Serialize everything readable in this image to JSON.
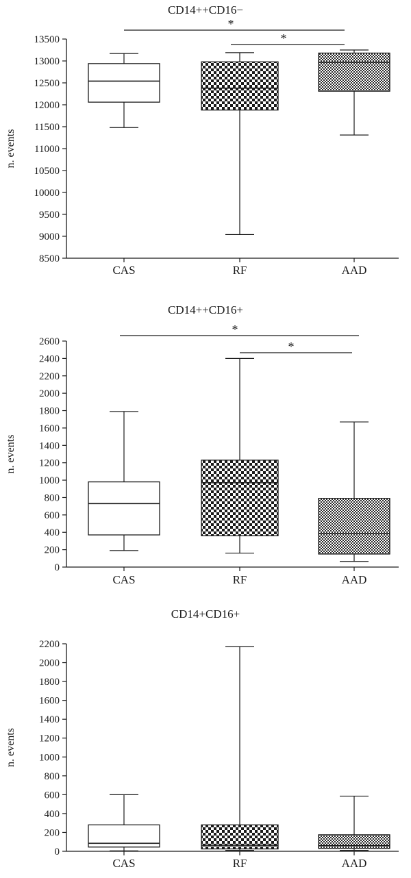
{
  "chart_data": [
    {
      "type": "box",
      "title": "CD14++CD16−",
      "ylabel": "n. events",
      "ylim": [
        8500,
        13500
      ],
      "yticks": [
        8500,
        9000,
        9500,
        10000,
        10500,
        11000,
        11500,
        12000,
        12500,
        13000,
        13500
      ],
      "categories": [
        "CAS",
        "RF",
        "AAD"
      ],
      "boxes": [
        {
          "category": "CAS",
          "min": 11480,
          "q1": 12060,
          "median": 12540,
          "q3": 12940,
          "max": 13170,
          "fill": "plain"
        },
        {
          "category": "RF",
          "min": 9040,
          "q1": 11880,
          "median": 12380,
          "q3": 12980,
          "max": 13190,
          "fill": "checker"
        },
        {
          "category": "AAD",
          "min": 11310,
          "q1": 12310,
          "median": 12970,
          "q3": 13180,
          "max": 13250,
          "fill": "fine-checker"
        }
      ],
      "significance": [
        {
          "from": "CAS",
          "to": "AAD",
          "label": "*"
        },
        {
          "from": "RF",
          "to": "AAD",
          "label": "*"
        }
      ]
    },
    {
      "type": "box",
      "title": "CD14++CD16+",
      "ylabel": "n. events",
      "ylim": [
        0,
        2600
      ],
      "yticks": [
        0,
        200,
        400,
        600,
        800,
        1000,
        1200,
        1400,
        1600,
        1800,
        2000,
        2200,
        2400,
        2600
      ],
      "categories": [
        "CAS",
        "RF",
        "AAD"
      ],
      "boxes": [
        {
          "category": "CAS",
          "min": 190,
          "q1": 370,
          "median": 730,
          "q3": 980,
          "max": 1790,
          "fill": "plain"
        },
        {
          "category": "RF",
          "min": 160,
          "q1": 360,
          "median": 970,
          "q3": 1230,
          "max": 2400,
          "fill": "checker"
        },
        {
          "category": "AAD",
          "min": 65,
          "q1": 150,
          "median": 385,
          "q3": 790,
          "max": 1670,
          "fill": "fine-checker"
        }
      ],
      "significance": [
        {
          "from": "CAS",
          "to": "AAD",
          "label": "*"
        },
        {
          "from": "RF",
          "to": "AAD",
          "label": "*"
        }
      ]
    },
    {
      "type": "box",
      "title": "CD14+CD16+",
      "ylabel": "n. events",
      "ylim": [
        0,
        2200
      ],
      "yticks": [
        0,
        200,
        400,
        600,
        800,
        1000,
        1200,
        1400,
        1600,
        1800,
        2000,
        2200
      ],
      "categories": [
        "CAS",
        "RF",
        "AAD"
      ],
      "boxes": [
        {
          "category": "CAS",
          "min": 5,
          "q1": 45,
          "median": 85,
          "q3": 280,
          "max": 600,
          "fill": "plain"
        },
        {
          "category": "RF",
          "min": 10,
          "q1": 25,
          "median": 65,
          "q3": 280,
          "max": 2170,
          "fill": "checker"
        },
        {
          "category": "AAD",
          "min": 10,
          "q1": 30,
          "median": 60,
          "q3": 175,
          "max": 585,
          "fill": "fine-checker"
        }
      ],
      "significance": []
    }
  ],
  "colors": {
    "ink": "#1a1a1a",
    "background": "#ffffff"
  }
}
